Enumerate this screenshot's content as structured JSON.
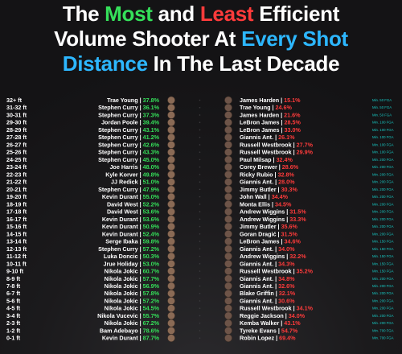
{
  "title": {
    "w1": "The",
    "most": "Most",
    "w2": "and",
    "least": "Least",
    "w3": "Efficient",
    "line2a": "Volume Shooter At",
    "every_shot": "Every Shot",
    "distance": "Distance",
    "line3b": "In The Last Decade"
  },
  "colors": {
    "most_pct": "#35e05a",
    "least_pct": "#ff3b3b",
    "min_text": "#17c7c2",
    "title_green": "#35e05a",
    "title_red": "#ff3b3b",
    "title_blue": "#2db7ff"
  },
  "chart_data": {
    "type": "table",
    "columns": [
      "Distance",
      "Most Efficient",
      "eFG% (Most)",
      "Least Efficient",
      "eFG% (Least)",
      "Min."
    ],
    "rows": [
      {
        "distance": "32+ ft",
        "most": "Trae Young",
        "most_pct": "37.8%",
        "least": "James Harden",
        "least_pct": "15.1%",
        "min": "Min. 50 FGA"
      },
      {
        "distance": "31-32 ft",
        "most": "Stephen Curry",
        "most_pct": "36.1%",
        "least": "Trae Young",
        "least_pct": "24.6%",
        "min": "Min. 50 FGA"
      },
      {
        "distance": "30-31 ft",
        "most": "Stephen Curry",
        "most_pct": "37.3%",
        "least": "James Harden",
        "least_pct": "21.6%",
        "min": "Min. 50 FGA"
      },
      {
        "distance": "29-30 ft",
        "most": "Jordan Poole",
        "most_pct": "39.4%",
        "least": "LeBron James",
        "least_pct": "28.5%",
        "min": "Min. 100 FGA"
      },
      {
        "distance": "28-29 ft",
        "most": "Stephen Curry",
        "most_pct": "43.1%",
        "least": "LeBron James",
        "least_pct": "33.0%",
        "min": "Min. 100 FGA"
      },
      {
        "distance": "27-28 ft",
        "most": "Stephen Curry",
        "most_pct": "41.2%",
        "least": "Giannis Ant.",
        "least_pct": "26.1%",
        "min": "Min. 100 FGA"
      },
      {
        "distance": "26-27 ft",
        "most": "Stephen Curry",
        "most_pct": "42.6%",
        "least": "Russell Westbrook",
        "least_pct": "27.7%",
        "min": "Min. 100 FGA"
      },
      {
        "distance": "25-26 ft",
        "most": "Stephen Curry",
        "most_pct": "43.3%",
        "least": "Russell Westbrook",
        "least_pct": "29.9%",
        "min": "Min. 100 FGA"
      },
      {
        "distance": "24-25 ft",
        "most": "Stephen Curry",
        "most_pct": "45.0%",
        "least": "Paul Milsap",
        "least_pct": "32.4%",
        "min": "Min. 200 FGA"
      },
      {
        "distance": "23-24 ft",
        "most": "Joe Harris",
        "most_pct": "48.0%",
        "least": "Corey Brewer",
        "least_pct": "28.6%",
        "min": "Min. 200 FGA"
      },
      {
        "distance": "22-23 ft",
        "most": "Kyle Korver",
        "most_pct": "49.8%",
        "least": "Ricky Rubio",
        "least_pct": "32.8%",
        "min": "Min. 200 FGA"
      },
      {
        "distance": "21-22 ft",
        "most": "JJ Redick",
        "most_pct": "51.0%",
        "least": "Giannis Ant.",
        "least_pct": "28.0%",
        "min": "Min. 200 FGA"
      },
      {
        "distance": "20-21 ft",
        "most": "Stephen Curry",
        "most_pct": "47.9%",
        "least": "Jimmy Butler",
        "least_pct": "30.3%",
        "min": "Min. 200 FGA"
      },
      {
        "distance": "19-20 ft",
        "most": "Kevin Durant",
        "most_pct": "55.0%",
        "least": "John Wall",
        "least_pct": "34.4%",
        "min": "Min. 200 FGA"
      },
      {
        "distance": "18-19 ft",
        "most": "David West",
        "most_pct": "52.2%",
        "least": "Monta Ellis",
        "least_pct": "34.5%",
        "min": "Min. 200 FGA"
      },
      {
        "distance": "17-18 ft",
        "most": "David West",
        "most_pct": "53.6%",
        "least": "Andrew Wiggins",
        "least_pct": "31.5%",
        "min": "Min. 200 FGA"
      },
      {
        "distance": "16-17 ft",
        "most": "Kevin Durant",
        "most_pct": "53.6%",
        "least": "Andrew Wiggins",
        "least_pct": "33.3%",
        "min": "Min. 200 FGA"
      },
      {
        "distance": "15-16 ft",
        "most": "Kevin Durant",
        "most_pct": "50.9%",
        "least": "Jimmy Butler",
        "least_pct": "35.6%",
        "min": "Min. 200 FGA"
      },
      {
        "distance": "14-15 ft",
        "most": "Kevin Durant",
        "most_pct": "52.4%",
        "least": "Goran Dragić",
        "least_pct": "31.5%",
        "min": "Min. 200 FGA"
      },
      {
        "distance": "13-14 ft",
        "most": "Serge Ibaka",
        "most_pct": "59.8%",
        "least": "LeBron James",
        "least_pct": "34.6%",
        "min": "Min. 150 FGA"
      },
      {
        "distance": "12-13 ft",
        "most": "Stephen Curry",
        "most_pct": "57.2%",
        "least": "Giannis Ant.",
        "least_pct": "34.0%",
        "min": "Min. 150 FGA"
      },
      {
        "distance": "11-12 ft",
        "most": "Luka Doncic",
        "most_pct": "50.3%",
        "least": "Andrew Wiggins",
        "least_pct": "32.2%",
        "min": "Min. 150 FGA"
      },
      {
        "distance": "10-11 ft",
        "most": "Jrue Holiday",
        "most_pct": "53.0%",
        "least": "Giannis Ant.",
        "least_pct": "34.3%",
        "min": "Min. 150 FGA"
      },
      {
        "distance": "9-10 ft",
        "most": "Nikola Jokic",
        "most_pct": "60.7%",
        "least": "Russell Westbrook",
        "least_pct": "35.2%",
        "min": "Min. 150 FGA"
      },
      {
        "distance": "8-9 ft",
        "most": "Nikola Jokic",
        "most_pct": "57.7%",
        "least": "Giannis Ant.",
        "least_pct": "34.8%",
        "min": "Min. 200 FGA"
      },
      {
        "distance": "7-8 ft",
        "most": "Nikola Jokic",
        "most_pct": "56.9%",
        "least": "Giannis Ant.",
        "least_pct": "32.6%",
        "min": "Min. 200 FGA"
      },
      {
        "distance": "6-7 ft",
        "most": "Nikola Jokic",
        "most_pct": "57.8%",
        "least": "Blake Griffin",
        "least_pct": "32.1%",
        "min": "Min. 200 FGA"
      },
      {
        "distance": "5-6 ft",
        "most": "Nikola Jokic",
        "most_pct": "57.2%",
        "least": "Giannis Ant.",
        "least_pct": "30.6%",
        "min": "Min. 200 FGA"
      },
      {
        "distance": "4-5 ft",
        "most": "Nikola Jokic",
        "most_pct": "54.5%",
        "least": "Russell Westbrook",
        "least_pct": "34.1%",
        "min": "Min. 200 FGA"
      },
      {
        "distance": "3-4 ft",
        "most": "Nikola Vucevic",
        "most_pct": "55.7%",
        "least": "Reggie Jackson",
        "least_pct": "34.0%",
        "min": "Min. 200 FGA"
      },
      {
        "distance": "2-3 ft",
        "most": "Nikola Jokic",
        "most_pct": "67.2%",
        "least": "Kemba Walker",
        "least_pct": "43.1%",
        "min": "Min. 200 FGA"
      },
      {
        "distance": "1-2 ft",
        "most": "Bam Adebayo",
        "most_pct": "78.6%",
        "least": "Tyreke Evans",
        "least_pct": "54.7%",
        "min": "Min. 700 FGA"
      },
      {
        "distance": "0-1 ft",
        "most": "Kevin Durant",
        "most_pct": "87.7%",
        "least": "Robin Lopez",
        "least_pct": "69.4%",
        "min": "Min. 700 FGA"
      }
    ]
  }
}
